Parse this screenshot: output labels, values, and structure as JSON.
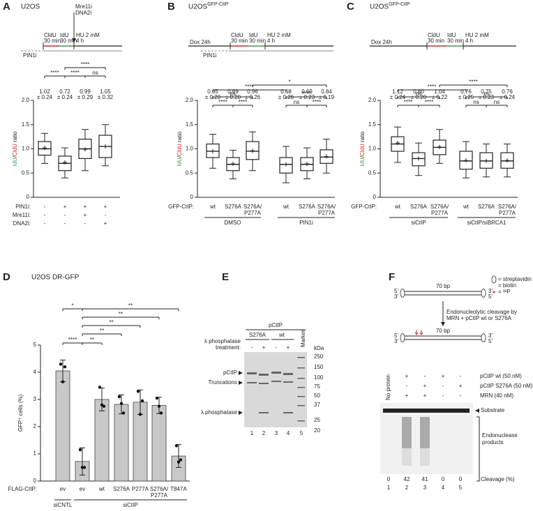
{
  "chart_data": [
    {
      "type": "box",
      "panel": "A",
      "title": "U2OS",
      "ylabel": [
        {
          "text": "IdU",
          "color": "#3fa34d"
        },
        {
          "text": "/"
        },
        {
          "text": "CldU",
          "color": "#d7262b"
        },
        {
          "text": " ratio"
        }
      ],
      "ylim": [
        0,
        2
      ],
      "yticks": [
        0,
        0.5,
        {
          "value": 1,
          "label": "1.0"
        },
        1.5,
        {
          "value": 2,
          "label": "2.0"
        }
      ],
      "boxes": [
        {
          "median": 1.0,
          "q1": 0.87,
          "q3": 1.15,
          "whisker_low": 0.7,
          "whisker_high": 1.32,
          "mean": 1.02
        },
        {
          "median": 0.7,
          "q1": 0.55,
          "q3": 0.85,
          "whisker_low": 0.4,
          "whisker_high": 1.02,
          "mean": 0.72
        },
        {
          "median": 1.0,
          "q1": 0.8,
          "q3": 1.2,
          "whisker_low": 0.55,
          "whisker_high": 1.4,
          "mean": 0.99
        },
        {
          "median": 1.05,
          "q1": 0.82,
          "q3": 1.28,
          "whisker_low": 0.65,
          "whisker_high": 1.5,
          "mean": 1.05
        }
      ],
      "stat_labels": [
        [
          "1.02",
          "± 0.24"
        ],
        [
          "0.72",
          "± 0.24"
        ],
        [
          "0.99",
          "± 0.29"
        ],
        [
          "1.05",
          "± 0.32"
        ]
      ],
      "conditions": [
        {
          "name": "PIN1i:",
          "values": [
            "-",
            "+",
            "+",
            "+"
          ]
        },
        {
          "name": "Mre11i:",
          "values": [
            "-",
            "-",
            "+",
            "-"
          ]
        },
        {
          "name": "DNA2i:",
          "values": [
            "-",
            "-",
            "-",
            "+"
          ]
        }
      ],
      "significance": [
        "****",
        "****",
        "****",
        "ns"
      ],
      "schematic": {
        "cldu": "CldU",
        "time1": "30 min",
        "idu": "IdU",
        "time2": "30 min",
        "hu": "HU 2 mM",
        "hu_time": "4 h",
        "pre": "PIN1i",
        "arrow": [
          "Mre11i",
          "DNA2i"
        ]
      }
    },
    {
      "type": "box",
      "panel": "B",
      "title": "U2OS",
      "title_sup": "GFP-CtIP",
      "ylabel": [
        {
          "text": "IdU",
          "color": "#3fa34d"
        },
        {
          "text": "/"
        },
        {
          "text": "CldU",
          "color": "#d7262b"
        },
        {
          "text": " ratio"
        }
      ],
      "ylim": [
        0,
        2
      ],
      "yticks": [
        0,
        0.5,
        {
          "value": 1,
          "label": "1.0"
        },
        1.5,
        {
          "value": 2,
          "label": "2.0"
        }
      ],
      "boxes": [
        {
          "median": 0.95,
          "q1": 0.82,
          "q3": 1.1,
          "whisker_low": 0.6,
          "whisker_high": 1.3,
          "mean": 0.95
        },
        {
          "median": 0.68,
          "q1": 0.55,
          "q3": 0.82,
          "whisker_low": 0.38,
          "whisker_high": 0.97,
          "mean": 0.69
        },
        {
          "median": 0.95,
          "q1": 0.78,
          "q3": 1.15,
          "whisker_low": 0.55,
          "whisker_high": 1.35,
          "mean": 0.96
        },
        {
          "median": 0.68,
          "q1": 0.5,
          "q3": 0.82,
          "whisker_low": 0.3,
          "whisker_high": 1.05,
          "mean": 0.68
        },
        {
          "median": 0.68,
          "q1": 0.55,
          "q3": 0.82,
          "whisker_low": 0.38,
          "whisker_high": 1.02,
          "mean": 0.69
        },
        {
          "median": 0.83,
          "q1": 0.7,
          "q3": 0.98,
          "whisker_low": 0.5,
          "whisker_high": 1.2,
          "mean": 0.84
        }
      ],
      "stat_labels": [
        [
          "0.95",
          "± 0.20"
        ],
        [
          "0.69",
          "± 0.20"
        ],
        [
          "0.96",
          "± 0.26"
        ],
        [
          "0.68",
          "± 0.26"
        ],
        [
          "0.69",
          "± 0.23"
        ],
        [
          "0.84",
          "± 0.19"
        ]
      ],
      "row_label": "GFP-CtIP:",
      "categories": [
        [
          "wt"
        ],
        [
          "S276A"
        ],
        [
          "S276A/",
          "P277A"
        ],
        [
          "wt"
        ],
        [
          "S276A"
        ],
        [
          "S276A/",
          "P277A"
        ]
      ],
      "groups": [
        "DMSO",
        "PIN1i"
      ],
      "significance": [
        "*",
        "****",
        "ns",
        "****",
        "****",
        "****",
        "ns",
        "****"
      ],
      "schematic": {
        "dox": "Dox 24h",
        "cldu": "CldU",
        "time1": "30 min",
        "idu": "IdU",
        "time2": "30 min",
        "hu": "HU 2 mM",
        "hu_time": "4 h",
        "pre": "PIN1i"
      }
    },
    {
      "type": "box",
      "panel": "C",
      "title": "U2OS",
      "title_sup": "GFP-CtIP",
      "ylabel": [
        {
          "text": "IdU",
          "color": "#3fa34d"
        },
        {
          "text": "/"
        },
        {
          "text": "CldU",
          "color": "#d7262b"
        },
        {
          "text": " ratio"
        }
      ],
      "ylim": [
        0,
        2
      ],
      "yticks": [
        0,
        0.5,
        {
          "value": 1,
          "label": "1.0"
        },
        1.5,
        {
          "value": 2,
          "label": "2.0"
        }
      ],
      "boxes": [
        {
          "median": 1.1,
          "q1": 0.95,
          "q3": 1.25,
          "whisker_low": 0.72,
          "whisker_high": 1.45,
          "mean": 1.12
        },
        {
          "median": 0.8,
          "q1": 0.65,
          "q3": 0.92,
          "whisker_low": 0.45,
          "whisker_high": 1.12,
          "mean": 0.8
        },
        {
          "median": 1.03,
          "q1": 0.88,
          "q3": 1.18,
          "whisker_low": 0.7,
          "whisker_high": 1.4,
          "mean": 1.04
        },
        {
          "median": 0.75,
          "q1": 0.58,
          "q3": 0.95,
          "whisker_low": 0.4,
          "whisker_high": 1.15,
          "mean": 0.76
        },
        {
          "median": 0.75,
          "q1": 0.6,
          "q3": 0.92,
          "whisker_low": 0.42,
          "whisker_high": 1.1,
          "mean": 0.75
        },
        {
          "median": 0.75,
          "q1": 0.6,
          "q3": 0.92,
          "whisker_low": 0.42,
          "whisker_high": 1.1,
          "mean": 0.76
        }
      ],
      "stat_labels": [
        [
          "1.12",
          "± 0.24"
        ],
        [
          "0.80",
          "± 0.20"
        ],
        [
          "1.04",
          "± 0.22"
        ],
        [
          "0.76",
          "± 0.25"
        ],
        [
          "0.75",
          "± 0.23"
        ],
        [
          "0.76",
          "± 0.24"
        ]
      ],
      "row_label": "GFP-CtIP:",
      "categories": [
        [
          "wt"
        ],
        [
          "S276A"
        ],
        [
          "S276A/",
          "P277A"
        ],
        [
          "wt"
        ],
        [
          "S276A"
        ],
        [
          "S276A/",
          "P277A"
        ]
      ],
      "groups": [
        "siCtIP",
        "siCtIP/siBRCA1"
      ],
      "significance": [
        "****",
        "****",
        "ns",
        "ns",
        "****",
        "****",
        "ns",
        "ns"
      ],
      "schematic": {
        "dox": "Dox 24h",
        "cldu": "CldU",
        "time1": "30 min",
        "idu": "IdU",
        "time2": "30 min",
        "hu": "HU 2 mM",
        "hu_time": "4 h"
      }
    },
    {
      "type": "bar",
      "panel": "D",
      "title": "U2OS DR-GFP",
      "ylabel": "GFP⁺ cells (%)",
      "color": "#c8c8c8",
      "ylim": [
        0,
        5
      ],
      "yticks": [
        0,
        1,
        2,
        3,
        4,
        5
      ],
      "values": [
        4.05,
        0.72,
        3.0,
        2.82,
        2.9,
        2.78,
        0.92
      ],
      "errors": [
        0.4,
        0.5,
        0.42,
        0.35,
        0.45,
        0.3,
        0.42
      ],
      "points": [
        [
          4.3,
          3.65,
          4.2
        ],
        [
          1.15,
          0.5,
          0.5
        ],
        [
          3.45,
          2.8,
          2.75
        ],
        [
          3.1,
          2.85,
          2.5
        ],
        [
          3.3,
          2.45,
          2.95
        ],
        [
          3.05,
          2.75,
          2.5
        ],
        [
          1.3,
          0.7,
          0.78
        ]
      ],
      "row_label": "FLAG-CtIP:",
      "categories": [
        [
          "ev"
        ],
        [
          "ev"
        ],
        [
          "wt"
        ],
        [
          "S276A"
        ],
        [
          "P277A"
        ],
        [
          "S276A/",
          "P277A"
        ],
        [
          "T847A"
        ]
      ],
      "groups": [
        "siCNTL",
        "siCtIP"
      ],
      "significance": [
        "*",
        "**",
        "**",
        "**",
        "**",
        "****",
        "**"
      ]
    }
  ],
  "panel_E": {
    "letter": "E",
    "header": "pCtIP",
    "mutants": [
      "S276A",
      "wt"
    ],
    "treatment": [
      "λ phosphatase",
      "treatment:"
    ],
    "signs": [
      "-",
      "+",
      "-",
      "+"
    ],
    "marker": "Marker",
    "kda": "kDa",
    "marker_sizes": [
      "250",
      "150",
      "100",
      "75",
      "50",
      "37",
      "25",
      "20"
    ],
    "bands": [
      "pCtIP",
      "Truncations",
      "λ phosphatase"
    ],
    "lanes": [
      "1",
      "2",
      "3",
      "4",
      "5"
    ]
  },
  "panel_F": {
    "letter": "F",
    "length": "70 bp",
    "ends": [
      "5'",
      "3'"
    ],
    "legend": [
      "= streptavidin",
      "= biotin",
      "= ³²P"
    ],
    "step": [
      "Endonucleolytic cleavage by",
      "MRN + pCtIP wt or S276A"
    ],
    "no_protein": "No protein",
    "rows": [
      {
        "name": "pCtIP wt (50 nM)",
        "values": [
          "+",
          "-",
          "+",
          "-"
        ]
      },
      {
        "name": "pCtIP S276A (50 nM)",
        "values": [
          "-",
          "+",
          "-",
          "+"
        ]
      },
      {
        "name": "MRN (40 nM)",
        "values": [
          "+",
          "+",
          "-",
          "-"
        ]
      }
    ],
    "substrate": "Substrate",
    "products": [
      "Endonuclease",
      "products"
    ],
    "cleavage_label": "Cleavage (%)",
    "cleavage": [
      0,
      42,
      41,
      0,
      0
    ],
    "lanes": [
      "1",
      "2",
      "3",
      "4",
      "5"
    ]
  }
}
